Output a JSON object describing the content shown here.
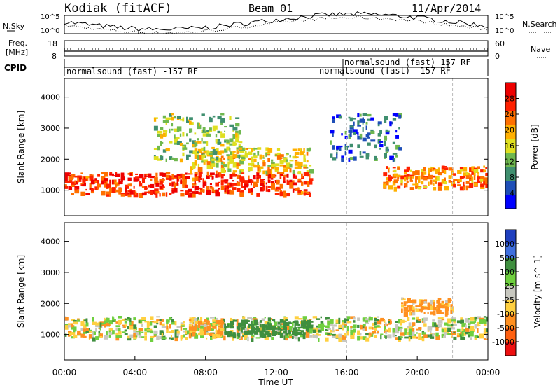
{
  "header": {
    "station": "Kodiak (fitACF)",
    "beam": "Beam 01",
    "date": "11/Apr/2014"
  },
  "top_panel": {
    "left_label": "N.Sky",
    "right_label": "N.Search",
    "y_top": "10^5",
    "y_bottom": "10^0",
    "y_top_r": "10^5",
    "y_bottom_r": "10^0"
  },
  "freq_panel": {
    "left_label_1": "Freq.",
    "left_label_2": "[MHz]",
    "y_top": "18",
    "y_bottom": "8",
    "right_label": "Nave",
    "y_top_r": "60",
    "y_bottom_r": "0"
  },
  "cpid_panel": {
    "label": "CPID",
    "mode_1": "normalsound (fast) -157 RF",
    "mode_2": "normalsound (fast) 157 RF",
    "mode_3": "normalsound (fast) -157 RF"
  },
  "colors": {
    "power_scale": [
      "#0000ff",
      "#1f4fb7",
      "#3f8f6f",
      "#6fb84f",
      "#dfdf20",
      "#ffb000",
      "#ff7000",
      "#ff2000",
      "#ee0000"
    ],
    "velocity_scale": [
      "#1f3fbf",
      "#3f6fdf",
      "#3f8f3f",
      "#6fcf3f",
      "#c8c8c0",
      "#ffd040",
      "#ff9020",
      "#ff6010",
      "#ee1010"
    ]
  },
  "chart_data": [
    {
      "type": "heatmap",
      "name": "power",
      "xlabel": "",
      "ylabel": "Slant Range [km]",
      "colorbar_label": "Power [dB]",
      "colorbar_ticks": [
        "28",
        "24",
        "20",
        "16",
        "12",
        "8",
        "4"
      ],
      "colorbar_range": [
        0,
        32
      ],
      "xlim": [
        "00:00",
        "24:00"
      ],
      "ylim": [
        180,
        4600
      ],
      "yticks": [
        1000,
        2000,
        3000,
        4000
      ],
      "features": [
        {
          "label": "main band",
          "t_start": 0,
          "t_end": 14,
          "range_low": 900,
          "range_high": 1600,
          "value": 26
        },
        {
          "label": "rising arc",
          "t_start": 7,
          "t_end": 14,
          "range_low": 1600,
          "range_high": 2400,
          "value": 18
        },
        {
          "label": "upper echoes",
          "t_start": 5,
          "t_end": 10,
          "range_low": 2000,
          "range_high": 3500,
          "value": 14
        },
        {
          "label": "central arch",
          "t_start": 15,
          "t_end": 19,
          "range_low": 2000,
          "range_high": 3500,
          "value": 8
        },
        {
          "label": "late band",
          "t_start": 18,
          "t_end": 24,
          "range_low": 1100,
          "range_high": 1800,
          "value": 22
        }
      ]
    },
    {
      "type": "heatmap",
      "name": "velocity",
      "xlabel": "Time UT",
      "ylabel": "Slant Range [km]",
      "colorbar_label": "Velocity [m s^-1]",
      "colorbar_ticks": [
        "1000",
        "500",
        "100",
        "25",
        "-25",
        "-100",
        "-500",
        "-1000"
      ],
      "xticks": [
        "00:00",
        "04:00",
        "08:00",
        "12:00",
        "16:00",
        "20:00",
        "00:00"
      ],
      "xlim": [
        "00:00",
        "24:00"
      ],
      "ylim": [
        180,
        4600
      ],
      "yticks": [
        1000,
        2000,
        3000,
        4000
      ],
      "features": [
        {
          "label": "ground scatter band",
          "t_start": 0,
          "t_end": 24,
          "range_low": 900,
          "range_high": 1600,
          "value": 0
        },
        {
          "label": "positive velocity patch",
          "t_start": 9,
          "t_end": 14,
          "range_low": 1000,
          "range_high": 1500,
          "value": 300
        },
        {
          "label": "negative velocity patch",
          "t_start": 7,
          "t_end": 9,
          "range_low": 1000,
          "range_high": 1500,
          "value": -200
        },
        {
          "label": "late negative arcs",
          "t_start": 19,
          "t_end": 22,
          "range_low": 1700,
          "range_high": 2200,
          "value": -150
        }
      ]
    }
  ]
}
